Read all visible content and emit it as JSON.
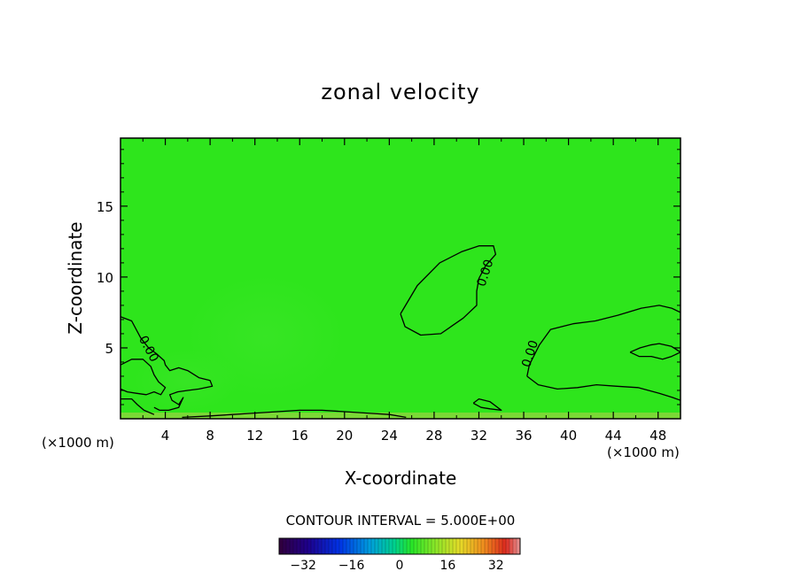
{
  "chart_data": {
    "type": "heatmap",
    "title": "zonal velocity",
    "xlabel": "X-coordinate",
    "ylabel": "Z-coordinate",
    "x_unit_note": "(×1000 m)",
    "x_unit_note_right": "(×1000 m)",
    "xlim": [
      0,
      50
    ],
    "ylim": [
      0,
      19.8
    ],
    "x_ticks": [
      4,
      8,
      12,
      16,
      20,
      24,
      28,
      32,
      36,
      40,
      44,
      48
    ],
    "x_ticks_labels": [
      "4",
      "8",
      "12",
      "16",
      "20",
      "24",
      "28",
      "32",
      "36",
      "40",
      "44",
      "48"
    ],
    "y_ticks": [
      5,
      10,
      15
    ],
    "y_ticks_labels": [
      "5",
      "10",
      "15"
    ],
    "contour_interval_text": "CONTOUR INTERVAL = 5.000E+00",
    "contour_labels": [
      "0.00",
      "0.00",
      "0.00"
    ],
    "field_value_approx": 0,
    "colorbar": {
      "range": [
        -40,
        40
      ],
      "ticks": [
        -32,
        -16,
        0,
        16,
        32
      ],
      "tick_labels": [
        "−32",
        "−16",
        "0",
        "16",
        "32"
      ]
    },
    "contours": [
      {
        "level": 0,
        "points": [
          [
            0,
            7.2
          ],
          [
            1,
            6.9
          ],
          [
            1.8,
            5.7
          ],
          [
            2.5,
            5.0
          ],
          [
            3.2,
            4.6
          ],
          [
            3.9,
            4.1
          ],
          [
            4,
            3.8
          ],
          [
            4.4,
            3.4
          ],
          [
            5.2,
            3.6
          ],
          [
            6,
            3.4
          ],
          [
            7,
            2.9
          ],
          [
            8,
            2.7
          ],
          [
            8.2,
            2.3
          ],
          [
            7,
            2.1
          ],
          [
            6,
            2.0
          ],
          [
            5.1,
            1.9
          ],
          [
            4.4,
            1.7
          ],
          [
            4.6,
            1.3
          ],
          [
            5.2,
            1.0
          ],
          [
            5.6,
            1.5
          ],
          [
            5.2,
            0.8
          ],
          [
            4.3,
            0.6
          ],
          [
            3.5,
            0.6
          ],
          [
            3,
            0.8
          ]
        ]
      },
      {
        "level": 0,
        "points": [
          [
            0,
            3.8
          ],
          [
            1,
            4.2
          ],
          [
            2,
            4.2
          ],
          [
            2.7,
            3.7
          ],
          [
            3,
            3.1
          ],
          [
            3.4,
            2.6
          ],
          [
            4,
            2.2
          ],
          [
            3.6,
            1.7
          ],
          [
            3,
            1.9
          ],
          [
            2.3,
            1.7
          ],
          [
            1.4,
            1.8
          ],
          [
            0.6,
            1.9
          ],
          [
            0,
            2.1
          ]
        ]
      },
      {
        "level": 0,
        "points": [
          [
            0,
            1.4
          ],
          [
            1,
            1.4
          ],
          [
            1.5,
            1.0
          ],
          [
            2.1,
            0.6
          ],
          [
            3,
            0.3
          ]
        ]
      },
      {
        "level": 0,
        "points": [
          [
            5.5,
            0.1
          ],
          [
            8,
            0.2
          ],
          [
            10,
            0.3
          ],
          [
            12,
            0.4
          ],
          [
            14,
            0.5
          ],
          [
            16,
            0.6
          ],
          [
            18,
            0.6
          ],
          [
            20,
            0.5
          ],
          [
            22,
            0.4
          ],
          [
            24,
            0.3
          ],
          [
            25.5,
            0.1
          ]
        ]
      },
      {
        "level": 0,
        "points": [
          [
            25,
            7.4
          ],
          [
            26.5,
            9.4
          ],
          [
            28.5,
            11.0
          ],
          [
            30.5,
            11.8
          ],
          [
            32,
            12.2
          ],
          [
            33.3,
            12.2
          ],
          [
            33.5,
            11.6
          ],
          [
            32.6,
            10.8
          ],
          [
            32,
            9.9
          ],
          [
            31.8,
            9.0
          ],
          [
            31.8,
            8.0
          ],
          [
            30.6,
            7.1
          ],
          [
            28.6,
            6.0
          ],
          [
            26.8,
            5.9
          ],
          [
            25.4,
            6.5
          ],
          [
            25,
            7.4
          ]
        ]
      },
      {
        "level": 0,
        "points": [
          [
            31.5,
            1.1
          ],
          [
            32,
            1.4
          ],
          [
            33,
            1.2
          ],
          [
            34,
            0.6
          ],
          [
            33,
            0.7
          ],
          [
            32.2,
            0.8
          ],
          [
            31.5,
            1.1
          ]
        ]
      },
      {
        "level": 0,
        "points": [
          [
            36.3,
            3.0
          ],
          [
            36.5,
            3.8
          ],
          [
            37.4,
            5.2
          ],
          [
            38.4,
            6.3
          ],
          [
            40.4,
            6.7
          ],
          [
            42.4,
            6.9
          ],
          [
            44.4,
            7.3
          ],
          [
            46.5,
            7.8
          ],
          [
            48.1,
            8.0
          ],
          [
            49.2,
            7.8
          ],
          [
            50,
            7.5
          ]
        ]
      },
      {
        "level": 0,
        "points": [
          [
            36.3,
            3.0
          ],
          [
            37.3,
            2.4
          ],
          [
            39,
            2.1
          ],
          [
            40.8,
            2.2
          ],
          [
            42.5,
            2.4
          ],
          [
            44.2,
            2.3
          ],
          [
            46.2,
            2.2
          ],
          [
            48.1,
            1.8
          ],
          [
            49.3,
            1.5
          ],
          [
            50,
            1.3
          ]
        ]
      },
      {
        "level": 0,
        "points": [
          [
            45.5,
            4.7
          ],
          [
            46.4,
            5.0
          ],
          [
            47.3,
            5.2
          ],
          [
            48.1,
            5.3
          ],
          [
            49.2,
            5.1
          ],
          [
            50,
            4.7
          ],
          [
            49.2,
            4.4
          ],
          [
            48.4,
            4.2
          ],
          [
            47.4,
            4.4
          ],
          [
            46.3,
            4.4
          ],
          [
            45.5,
            4.7
          ]
        ]
      }
    ]
  }
}
